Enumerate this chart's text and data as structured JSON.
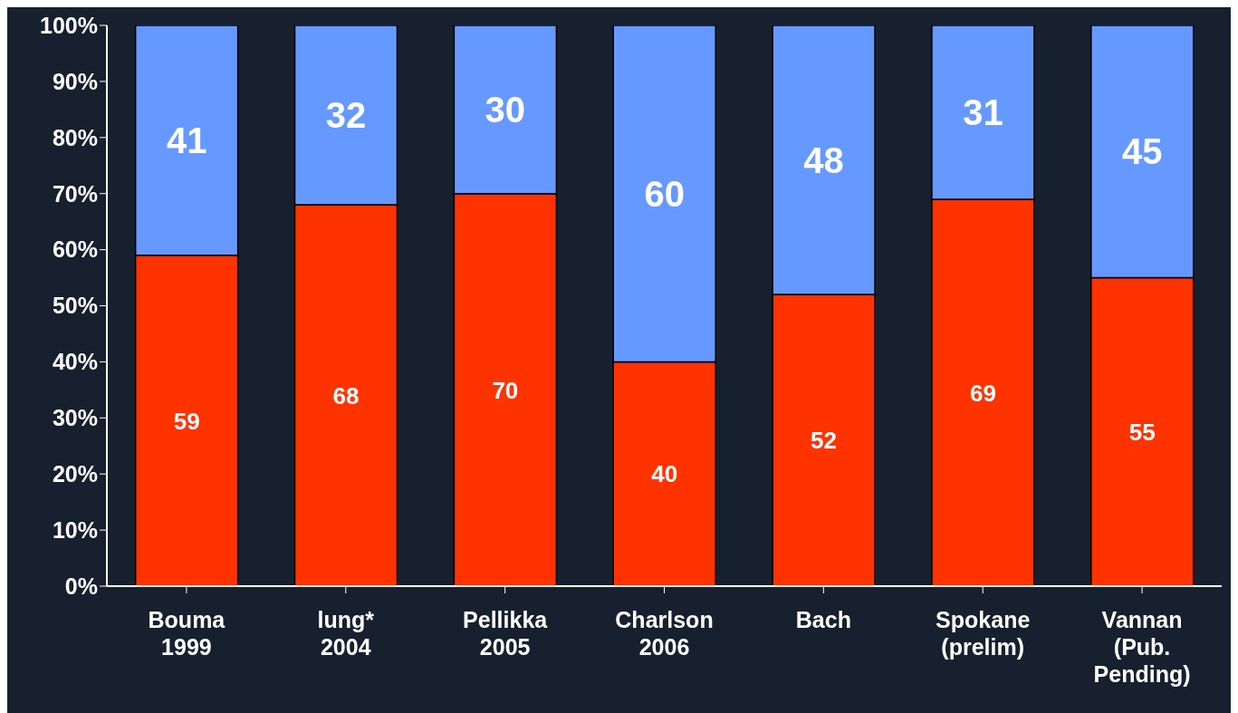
{
  "chart_data": {
    "type": "bar",
    "stacked": true,
    "data_labels": true,
    "categories": [
      "Bouma\n1999",
      "lung*\n2004",
      "Pellikka\n2005",
      "Charlson\n2006",
      "Bach",
      "Spokane\n(prelim)",
      "Vannan\n(Pub.\nPending)"
    ],
    "series": [
      {
        "color": "#ff3300",
        "values": [
          59,
          68,
          70,
          40,
          52,
          69,
          55
        ]
      },
      {
        "color": "#6699ff",
        "values": [
          41,
          32,
          30,
          60,
          48,
          31,
          45
        ]
      }
    ],
    "ylim": [
      0,
      100
    ],
    "yticks": [
      {
        "value": 0,
        "label": "0%"
      },
      {
        "value": 10,
        "label": "10%"
      },
      {
        "value": 20,
        "label": "20%"
      },
      {
        "value": 30,
        "label": "30%"
      },
      {
        "value": 40,
        "label": "40%"
      },
      {
        "value": 50,
        "label": "50%"
      },
      {
        "value": 60,
        "label": "60%"
      },
      {
        "value": 70,
        "label": "70%"
      },
      {
        "value": 80,
        "label": "80%"
      },
      {
        "value": 90,
        "label": "90%"
      },
      {
        "value": 100,
        "label": "100%"
      }
    ]
  }
}
